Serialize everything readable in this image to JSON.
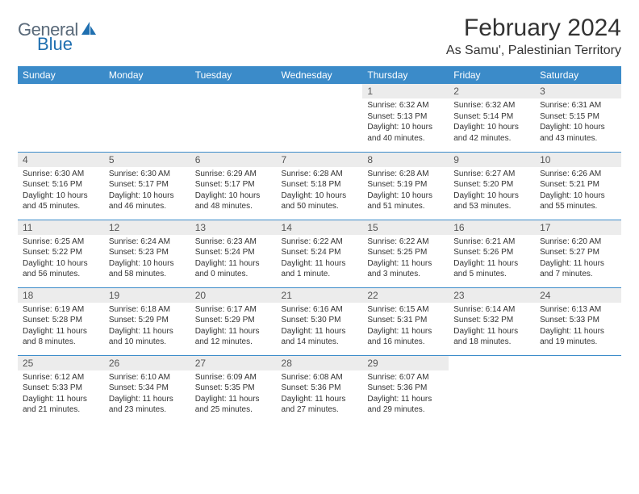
{
  "logo": {
    "text1": "General",
    "text2": "Blue"
  },
  "title": "February 2024",
  "location": "As Samu', Palestinian Territory",
  "colors": {
    "header_bg": "#3b8bc9",
    "header_text": "#ffffff",
    "daynum_bg": "#ececec",
    "daynum_text": "#555555",
    "text": "#333333",
    "logo_gray": "#5a6a7a",
    "logo_blue": "#1f6fb0"
  },
  "weekdays": [
    "Sunday",
    "Monday",
    "Tuesday",
    "Wednesday",
    "Thursday",
    "Friday",
    "Saturday"
  ],
  "weeks": [
    [
      {
        "empty": true
      },
      {
        "empty": true
      },
      {
        "empty": true
      },
      {
        "empty": true
      },
      {
        "num": "1",
        "sunrise": "6:32 AM",
        "sunset": "5:13 PM",
        "daylight": "10 hours and 40 minutes."
      },
      {
        "num": "2",
        "sunrise": "6:32 AM",
        "sunset": "5:14 PM",
        "daylight": "10 hours and 42 minutes."
      },
      {
        "num": "3",
        "sunrise": "6:31 AM",
        "sunset": "5:15 PM",
        "daylight": "10 hours and 43 minutes."
      }
    ],
    [
      {
        "num": "4",
        "sunrise": "6:30 AM",
        "sunset": "5:16 PM",
        "daylight": "10 hours and 45 minutes."
      },
      {
        "num": "5",
        "sunrise": "6:30 AM",
        "sunset": "5:17 PM",
        "daylight": "10 hours and 46 minutes."
      },
      {
        "num": "6",
        "sunrise": "6:29 AM",
        "sunset": "5:17 PM",
        "daylight": "10 hours and 48 minutes."
      },
      {
        "num": "7",
        "sunrise": "6:28 AM",
        "sunset": "5:18 PM",
        "daylight": "10 hours and 50 minutes."
      },
      {
        "num": "8",
        "sunrise": "6:28 AM",
        "sunset": "5:19 PM",
        "daylight": "10 hours and 51 minutes."
      },
      {
        "num": "9",
        "sunrise": "6:27 AM",
        "sunset": "5:20 PM",
        "daylight": "10 hours and 53 minutes."
      },
      {
        "num": "10",
        "sunrise": "6:26 AM",
        "sunset": "5:21 PM",
        "daylight": "10 hours and 55 minutes."
      }
    ],
    [
      {
        "num": "11",
        "sunrise": "6:25 AM",
        "sunset": "5:22 PM",
        "daylight": "10 hours and 56 minutes."
      },
      {
        "num": "12",
        "sunrise": "6:24 AM",
        "sunset": "5:23 PM",
        "daylight": "10 hours and 58 minutes."
      },
      {
        "num": "13",
        "sunrise": "6:23 AM",
        "sunset": "5:24 PM",
        "daylight": "11 hours and 0 minutes."
      },
      {
        "num": "14",
        "sunrise": "6:22 AM",
        "sunset": "5:24 PM",
        "daylight": "11 hours and 1 minute."
      },
      {
        "num": "15",
        "sunrise": "6:22 AM",
        "sunset": "5:25 PM",
        "daylight": "11 hours and 3 minutes."
      },
      {
        "num": "16",
        "sunrise": "6:21 AM",
        "sunset": "5:26 PM",
        "daylight": "11 hours and 5 minutes."
      },
      {
        "num": "17",
        "sunrise": "6:20 AM",
        "sunset": "5:27 PM",
        "daylight": "11 hours and 7 minutes."
      }
    ],
    [
      {
        "num": "18",
        "sunrise": "6:19 AM",
        "sunset": "5:28 PM",
        "daylight": "11 hours and 8 minutes."
      },
      {
        "num": "19",
        "sunrise": "6:18 AM",
        "sunset": "5:29 PM",
        "daylight": "11 hours and 10 minutes."
      },
      {
        "num": "20",
        "sunrise": "6:17 AM",
        "sunset": "5:29 PM",
        "daylight": "11 hours and 12 minutes."
      },
      {
        "num": "21",
        "sunrise": "6:16 AM",
        "sunset": "5:30 PM",
        "daylight": "11 hours and 14 minutes."
      },
      {
        "num": "22",
        "sunrise": "6:15 AM",
        "sunset": "5:31 PM",
        "daylight": "11 hours and 16 minutes."
      },
      {
        "num": "23",
        "sunrise": "6:14 AM",
        "sunset": "5:32 PM",
        "daylight": "11 hours and 18 minutes."
      },
      {
        "num": "24",
        "sunrise": "6:13 AM",
        "sunset": "5:33 PM",
        "daylight": "11 hours and 19 minutes."
      }
    ],
    [
      {
        "num": "25",
        "sunrise": "6:12 AM",
        "sunset": "5:33 PM",
        "daylight": "11 hours and 21 minutes."
      },
      {
        "num": "26",
        "sunrise": "6:10 AM",
        "sunset": "5:34 PM",
        "daylight": "11 hours and 23 minutes."
      },
      {
        "num": "27",
        "sunrise": "6:09 AM",
        "sunset": "5:35 PM",
        "daylight": "11 hours and 25 minutes."
      },
      {
        "num": "28",
        "sunrise": "6:08 AM",
        "sunset": "5:36 PM",
        "daylight": "11 hours and 27 minutes."
      },
      {
        "num": "29",
        "sunrise": "6:07 AM",
        "sunset": "5:36 PM",
        "daylight": "11 hours and 29 minutes."
      },
      {
        "empty": true
      },
      {
        "empty": true
      }
    ]
  ],
  "labels": {
    "sunrise_prefix": "Sunrise: ",
    "sunset_prefix": "Sunset: ",
    "daylight_prefix": "Daylight: "
  }
}
